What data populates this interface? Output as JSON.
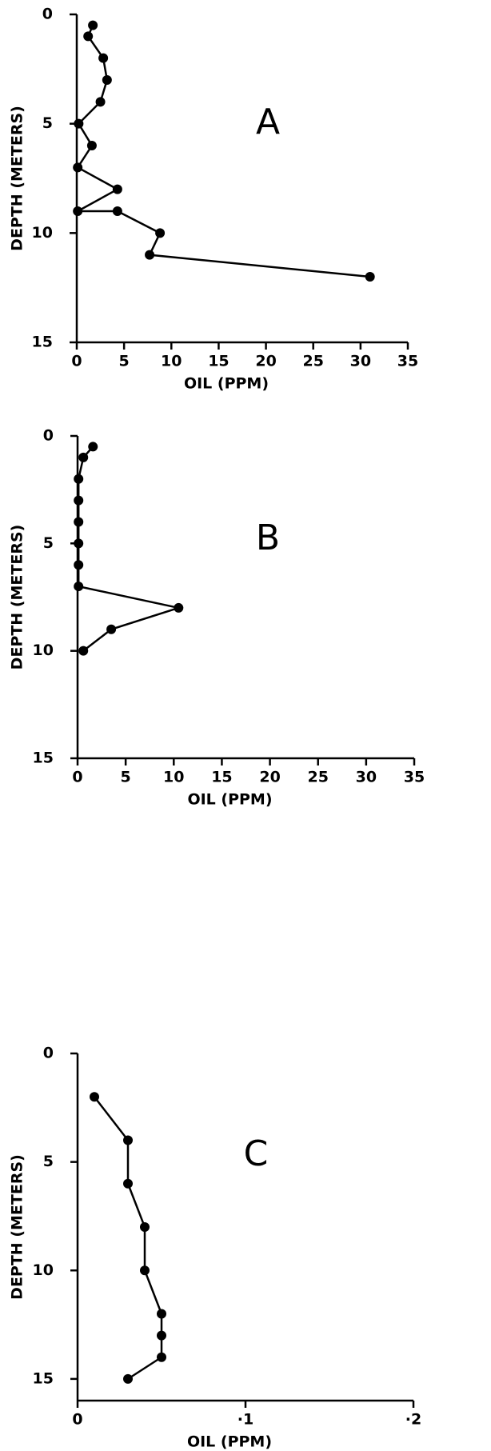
{
  "chart_data": [
    {
      "type": "line",
      "annotation": "A",
      "xlabel": "OIL  (PPM)",
      "ylabel": "DEPTH  (METERS)",
      "x": [
        1.7,
        1.2,
        2.8,
        3.2,
        2.5,
        0.2,
        1.6,
        0.1,
        4.3,
        0.1,
        4.3,
        8.8,
        7.7,
        31
      ],
      "values": [
        0.5,
        1,
        2,
        3,
        4,
        5,
        6,
        7,
        8,
        9,
        9,
        10,
        11,
        12
      ],
      "xlim": [
        0,
        35
      ],
      "xticks": [
        0,
        5,
        10,
        15,
        20,
        25,
        30,
        35
      ],
      "ylim": [
        0,
        15
      ],
      "yticks": [
        0,
        5,
        10,
        15
      ],
      "inverted_y": true,
      "color": "#000000"
    },
    {
      "type": "line",
      "annotation": "B",
      "xlabel": "OIL  (PPM)",
      "ylabel": "DEPTH  (METERS)",
      "x": [
        1.6,
        0.6,
        0.1,
        0.1,
        0.1,
        0.1,
        0.1,
        0.1,
        10.5,
        3.5,
        0.6
      ],
      "values": [
        0.5,
        1,
        2,
        3,
        4,
        5,
        6,
        7,
        8,
        9,
        10
      ],
      "xlim": [
        0,
        35
      ],
      "xticks": [
        0,
        5,
        10,
        15,
        20,
        25,
        30,
        35
      ],
      "ylim": [
        0,
        15
      ],
      "yticks": [
        0,
        5,
        10,
        15
      ],
      "inverted_y": true,
      "color": "#000000"
    },
    {
      "type": "line",
      "annotation": "C",
      "xlabel": "OIL  (PPM)",
      "ylabel": "DEPTH  (METERS)",
      "x": [
        0.01,
        0.03,
        0.03,
        0.04,
        0.04,
        0.05,
        0.05,
        0.05,
        0.03
      ],
      "values": [
        2,
        4,
        6,
        8,
        10,
        12,
        13,
        14,
        15
      ],
      "xlim": [
        0,
        0.2
      ],
      "xticks": [
        0,
        {
          "value": 0.1,
          "label": "·1"
        },
        {
          "value": 0.2,
          "label": "·2"
        }
      ],
      "ylim": [
        0,
        16
      ],
      "yticks": [
        0,
        5,
        10,
        15
      ],
      "inverted_y": true,
      "color": "#000000"
    }
  ]
}
